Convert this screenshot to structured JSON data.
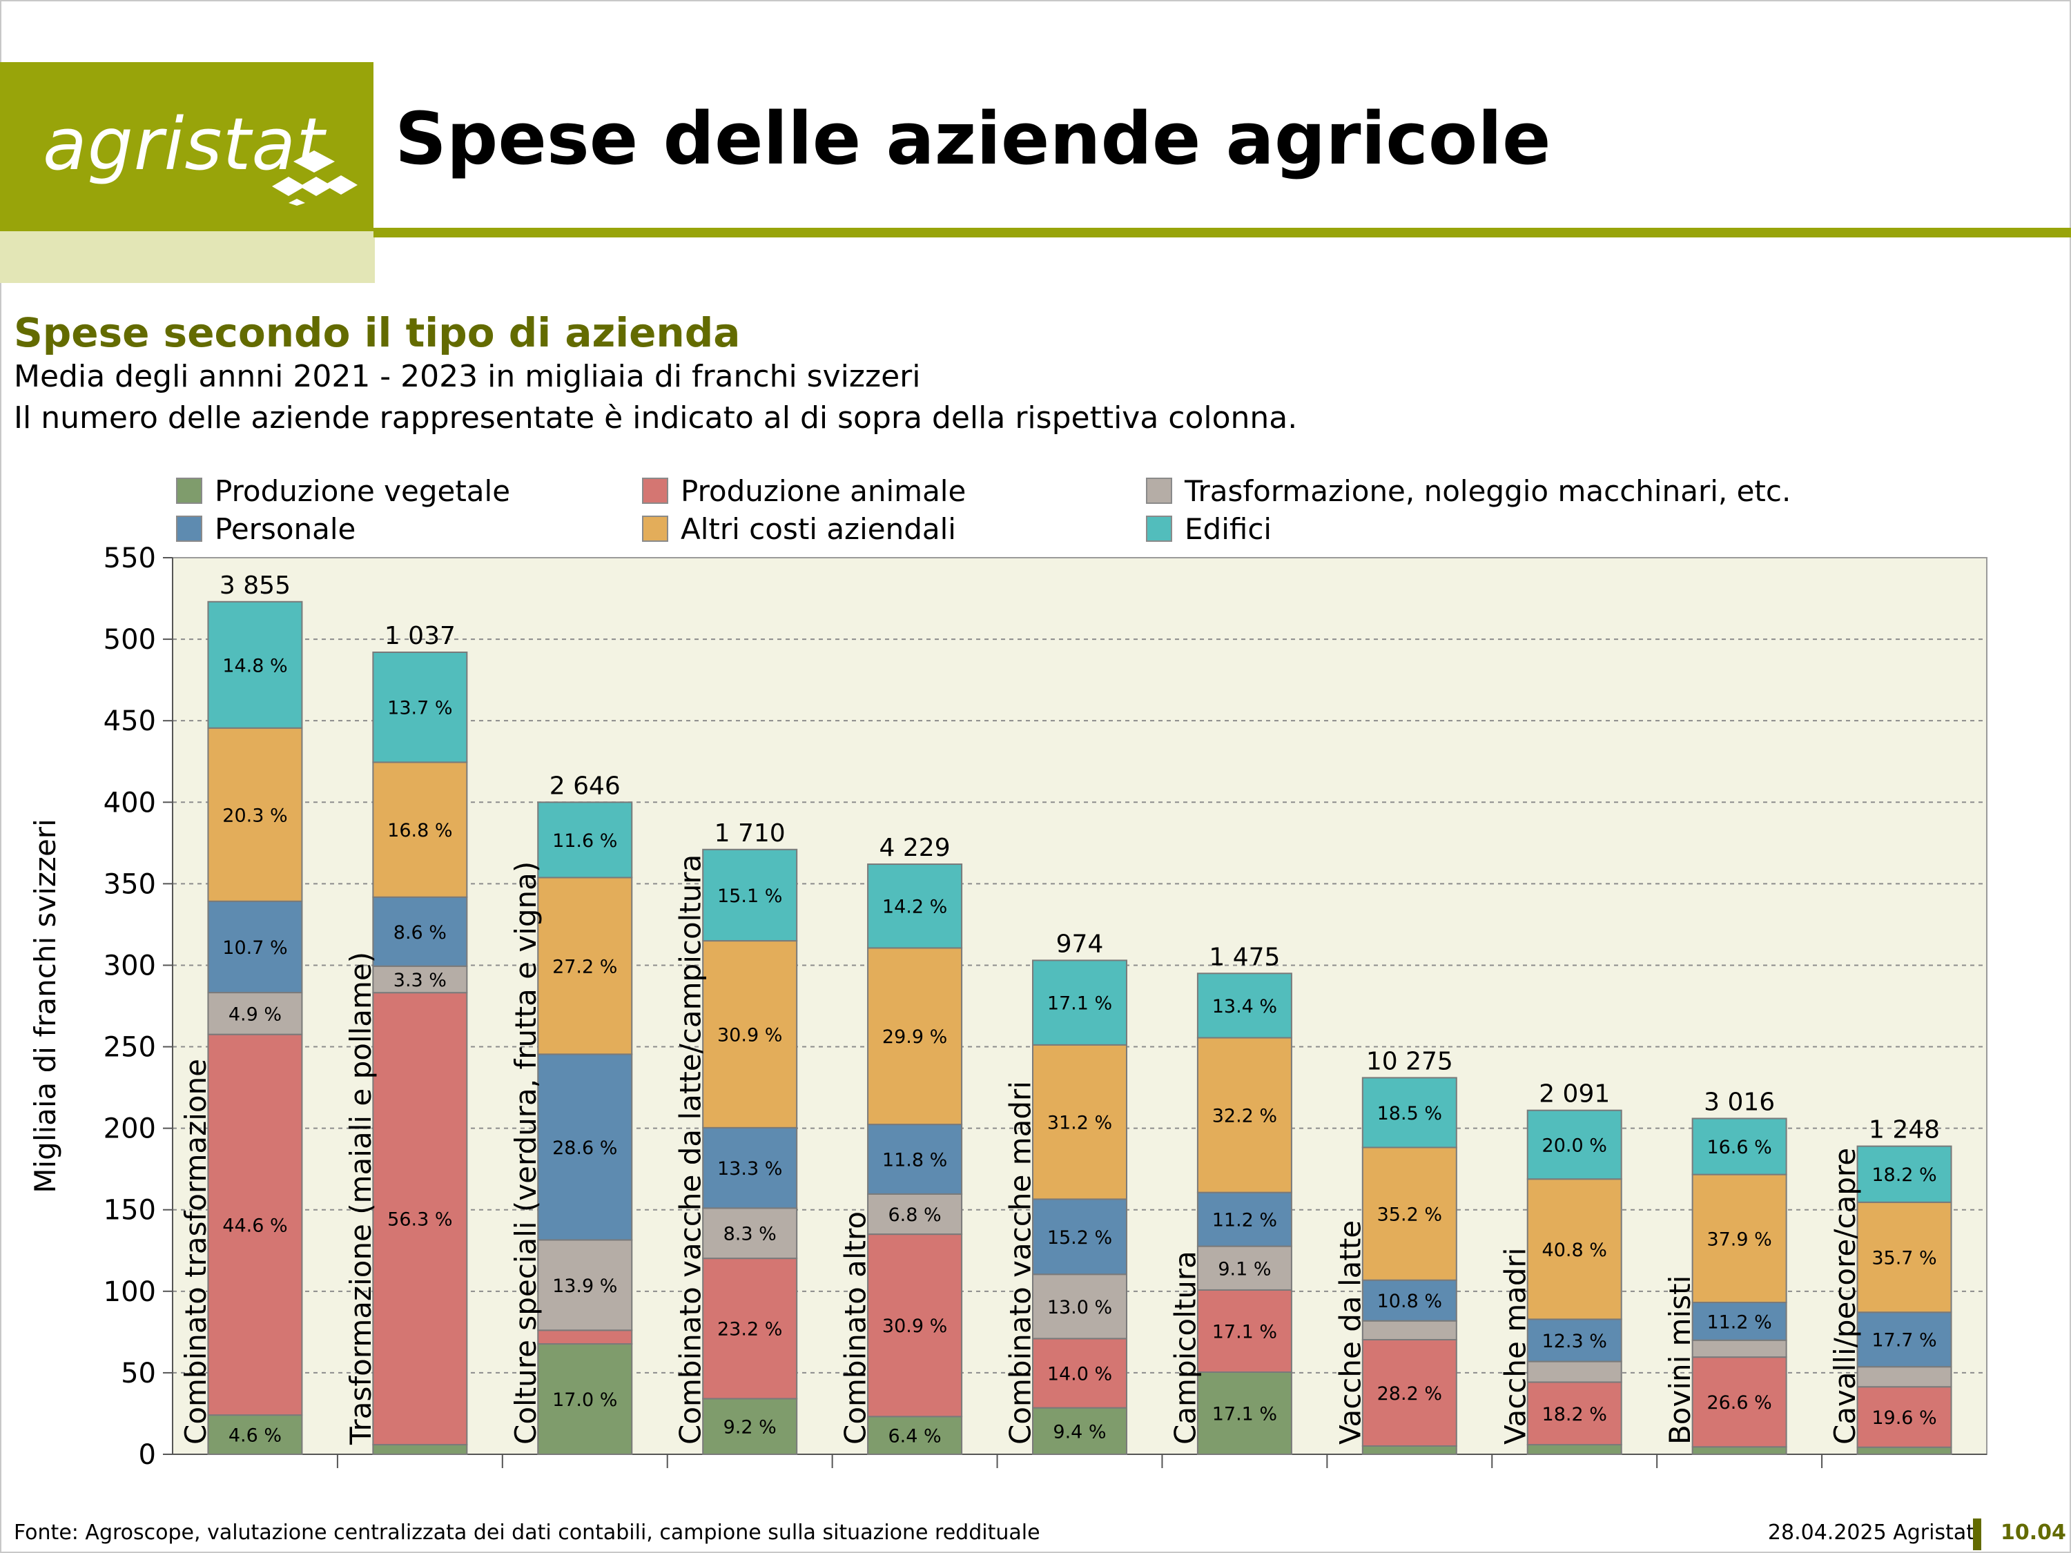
{
  "header": {
    "logo_text": "agristat",
    "title": "Spese delle aziende agricole"
  },
  "section": {
    "subtitle": "Spese secondo il tipo di azienda",
    "description_1": "Media degli annni 2021 - 2023 in migliaia di franchi svizzeri",
    "description_2": "Il numero delle aziende rappresentate è indicato al di sopra della rispettiva colonna."
  },
  "colors": {
    "brand": "#98a40a",
    "brand_dark": "#636b00",
    "brand_light": "#e3e6b6",
    "plot_bg": "#f3f3e3"
  },
  "footer": {
    "source": "Fonte: Agroscope, valutazione centralizzata dei dati contabili, campione sulla situazione reddituale",
    "date": "28.04.2025 Agristat",
    "page": "10.04"
  },
  "chart_data": {
    "type": "bar",
    "stacked": true,
    "ylabel": "Migliaia di franchi svizzeri",
    "ylim": [
      0,
      550
    ],
    "yticks": [
      0,
      50,
      100,
      150,
      200,
      250,
      300,
      350,
      400,
      450,
      500,
      550
    ],
    "grid": "horizontal dotted",
    "legend_position": "top",
    "categories": [
      "Combinato trasformazione",
      "Trasformazione (maiali e pollame)",
      "Colture speciali (verdura, frutta e vigna)",
      "Combinato vacche da latte/campicoltura",
      "Combinato altro",
      "Combinato vacche madri",
      "Campicoltura",
      "Vacche da latte",
      "Vacche madri",
      "Bovini misti",
      "Cavalli/pecore/capre"
    ],
    "farm_counts": [
      "3 855",
      "1 037",
      "2 646",
      "1 710",
      "4 229",
      "974",
      "1 475",
      "10 275",
      "2 091",
      "3 016",
      "1 248"
    ],
    "totals": [
      523,
      492,
      400,
      371,
      362,
      303,
      295,
      231,
      211,
      206,
      189
    ],
    "series": [
      {
        "name": "Produzione vegetale",
        "color": "#7f9c6c",
        "shares": [
          4.6,
          1.2,
          17.0,
          9.2,
          6.4,
          9.4,
          17.1,
          2.2,
          2.8,
          2.2,
          2.3
        ],
        "labels": [
          "4.6 %",
          "",
          "17.0 %",
          "9.2 %",
          "6.4 %",
          "9.4 %",
          "17.1 %",
          "",
          "",
          "",
          ""
        ]
      },
      {
        "name": "Produzione animale",
        "color": "#d47672",
        "shares": [
          44.6,
          56.3,
          2.1,
          23.2,
          30.9,
          14.0,
          17.1,
          28.2,
          18.2,
          26.6,
          19.6
        ],
        "labels": [
          "44.6 %",
          "56.3 %",
          "",
          "23.2 %",
          "30.9 %",
          "14.0 %",
          "17.1 %",
          "28.2 %",
          "18.2 %",
          "26.6 %",
          "19.6 %"
        ]
      },
      {
        "name": "Trasformazione, noleggio macchinari, etc.",
        "color": "#b5ada6",
        "shares": [
          4.9,
          3.3,
          13.9,
          8.3,
          6.8,
          13.0,
          9.1,
          5.0,
          6.0,
          5.0,
          6.5
        ],
        "labels": [
          "4.9 %",
          "3.3 %",
          "13.9 %",
          "8.3 %",
          "6.8 %",
          "13.0 %",
          "9.1 %",
          "",
          "",
          "",
          ""
        ]
      },
      {
        "name": "Personale",
        "color": "#5e8bb0",
        "shares": [
          10.7,
          8.6,
          28.6,
          13.3,
          11.8,
          15.2,
          11.2,
          10.8,
          12.3,
          11.2,
          17.7
        ],
        "labels": [
          "10.7 %",
          "8.6 %",
          "28.6 %",
          "13.3 %",
          "11.8 %",
          "15.2 %",
          "11.2 %",
          "10.8 %",
          "12.3 %",
          "11.2 %",
          "17.7 %"
        ]
      },
      {
        "name": "Altri costi aziendali",
        "color": "#e3ad5a",
        "shares": [
          20.3,
          16.8,
          27.2,
          30.9,
          29.9,
          31.2,
          32.2,
          35.2,
          40.8,
          37.9,
          35.7
        ],
        "labels": [
          "20.3 %",
          "16.8 %",
          "27.2 %",
          "30.9 %",
          "29.9 %",
          "31.2 %",
          "32.2 %",
          "35.2 %",
          "40.8 %",
          "37.9 %",
          "35.7 %"
        ]
      },
      {
        "name": "Edifici",
        "color": "#52bdbc",
        "shares": [
          14.8,
          13.7,
          11.6,
          15.1,
          14.2,
          17.1,
          13.4,
          18.5,
          20.0,
          16.6,
          18.2
        ],
        "labels": [
          "14.8 %",
          "13.7 %",
          "11.6 %",
          "15.1 %",
          "14.2 %",
          "17.1 %",
          "13.4 %",
          "18.5 %",
          "20.0 %",
          "16.6 %",
          "18.2 %"
        ]
      }
    ]
  }
}
